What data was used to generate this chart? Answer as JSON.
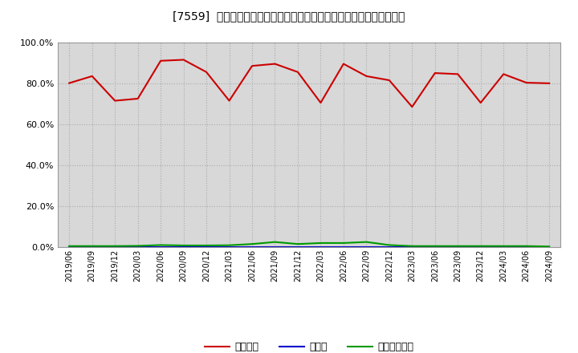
{
  "title": "[7559]  自己資本、のれん、繰延税金資産の総資産に対する比率の推移",
  "x_labels": [
    "2019/06",
    "2019/09",
    "2019/12",
    "2020/03",
    "2020/06",
    "2020/09",
    "2020/12",
    "2021/03",
    "2021/06",
    "2021/09",
    "2021/12",
    "2022/03",
    "2022/06",
    "2022/09",
    "2022/12",
    "2023/03",
    "2023/06",
    "2023/09",
    "2023/12",
    "2024/03",
    "2024/06",
    "2024/09"
  ],
  "equity": [
    80.1,
    83.5,
    71.5,
    72.5,
    91.0,
    91.5,
    85.5,
    71.5,
    88.5,
    89.5,
    85.5,
    70.5,
    89.5,
    83.5,
    81.5,
    68.5,
    85.0,
    84.5,
    70.5,
    84.5,
    80.3,
    80.0
  ],
  "goodwill": [
    0.0,
    0.0,
    0.0,
    0.0,
    0.0,
    0.0,
    0.0,
    0.0,
    0.0,
    0.0,
    0.0,
    0.0,
    0.0,
    0.0,
    0.0,
    0.0,
    0.0,
    0.0,
    0.0,
    0.0,
    0.0,
    0.0
  ],
  "deferred_tax": [
    0.5,
    0.5,
    0.5,
    0.6,
    1.0,
    0.8,
    0.8,
    0.9,
    1.5,
    2.5,
    1.5,
    2.0,
    2.0,
    2.5,
    1.0,
    0.5,
    0.5,
    0.5,
    0.5,
    0.5,
    0.5,
    0.3
  ],
  "equity_color": "#cc0000",
  "goodwill_color": "#0000cc",
  "deferred_tax_color": "#009900",
  "legend_equity": "自己資本",
  "legend_goodwill": "のれん",
  "legend_deferred": "繰延税金資産",
  "bg_color": "#ffffff",
  "plot_bg_color": "#d8d8d8",
  "ylim": [
    0.0,
    100.0
  ],
  "yticks": [
    0.0,
    20.0,
    40.0,
    60.0,
    80.0,
    100.0
  ]
}
